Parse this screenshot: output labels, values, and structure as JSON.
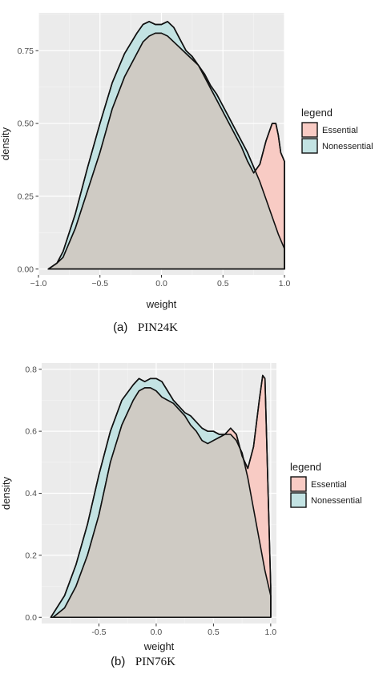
{
  "colors": {
    "panel_bg": "#ebebeb",
    "grid_major": "#ffffff",
    "grid_minor": "#f5f5f5",
    "essential_fill": "#f8cbc4",
    "nonessential_fill": "#c3e3e3",
    "overlap_fill": "#cfcbc4",
    "outline": "#111111"
  },
  "chart_data": [
    {
      "type": "area",
      "caption_prefix": "(a)",
      "caption_name": "PIN24K",
      "xlabel": "weight",
      "ylabel": "density",
      "xlim": [
        -1.0,
        1.0
      ],
      "ylim": [
        -0.02,
        0.88
      ],
      "x_ticks": [
        -1.0,
        -0.5,
        0.0,
        0.5,
        1.0
      ],
      "x_tick_labels": [
        "−1.0",
        "−0.5",
        "0.0",
        "0.5",
        "1.0"
      ],
      "y_ticks": [
        0.0,
        0.25,
        0.5,
        0.75
      ],
      "y_tick_labels": [
        "0.00",
        "0.25",
        "0.50",
        "0.75"
      ],
      "grid": true,
      "legend": {
        "title": "legend",
        "position": "right",
        "entries": [
          "Essential",
          "Nonessential"
        ]
      },
      "series": [
        {
          "name": "Essential",
          "x": [
            -0.92,
            -0.85,
            -0.8,
            -0.7,
            -0.6,
            -0.5,
            -0.4,
            -0.3,
            -0.2,
            -0.15,
            -0.1,
            -0.05,
            0.0,
            0.05,
            0.1,
            0.15,
            0.2,
            0.25,
            0.3,
            0.35,
            0.4,
            0.45,
            0.5,
            0.55,
            0.6,
            0.65,
            0.7,
            0.75,
            0.8,
            0.85,
            0.9,
            0.93,
            0.95,
            0.97,
            1.0
          ],
          "y": [
            0.0,
            0.02,
            0.04,
            0.14,
            0.27,
            0.4,
            0.55,
            0.66,
            0.74,
            0.78,
            0.8,
            0.81,
            0.81,
            0.8,
            0.78,
            0.76,
            0.74,
            0.72,
            0.7,
            0.66,
            0.62,
            0.58,
            0.54,
            0.5,
            0.46,
            0.42,
            0.37,
            0.33,
            0.36,
            0.44,
            0.5,
            0.5,
            0.46,
            0.4,
            0.37
          ]
        },
        {
          "name": "Nonessential",
          "x": [
            -0.92,
            -0.85,
            -0.8,
            -0.7,
            -0.6,
            -0.5,
            -0.4,
            -0.3,
            -0.2,
            -0.15,
            -0.1,
            -0.05,
            0.0,
            0.05,
            0.1,
            0.15,
            0.2,
            0.25,
            0.3,
            0.35,
            0.4,
            0.45,
            0.5,
            0.55,
            0.6,
            0.65,
            0.7,
            0.75,
            0.8,
            0.85,
            0.9,
            0.95,
            1.0
          ],
          "y": [
            0.0,
            0.02,
            0.06,
            0.19,
            0.35,
            0.5,
            0.64,
            0.74,
            0.81,
            0.84,
            0.85,
            0.84,
            0.84,
            0.85,
            0.83,
            0.79,
            0.75,
            0.73,
            0.7,
            0.67,
            0.63,
            0.6,
            0.56,
            0.52,
            0.48,
            0.44,
            0.4,
            0.35,
            0.3,
            0.24,
            0.18,
            0.12,
            0.07
          ]
        }
      ]
    },
    {
      "type": "area",
      "caption_prefix": "(b)",
      "caption_name": "PIN76K",
      "xlabel": "weight",
      "ylabel": "density",
      "xlim": [
        -1.0,
        1.05
      ],
      "ylim": [
        -0.02,
        0.82
      ],
      "x_ticks": [
        -0.5,
        0.0,
        0.5,
        1.0
      ],
      "x_tick_labels": [
        "-0.5",
        "0.0",
        "0.5",
        "1.0"
      ],
      "y_ticks": [
        0.0,
        0.2,
        0.4,
        0.6,
        0.8
      ],
      "y_tick_labels": [
        "0.0",
        "0.2",
        "0.4",
        "0.6",
        "0.8"
      ],
      "grid": true,
      "legend": {
        "title": "legend",
        "position": "right",
        "entries": [
          "Essential",
          "Nonessential"
        ]
      },
      "series": [
        {
          "name": "Essential",
          "x": [
            -0.9,
            -0.8,
            -0.7,
            -0.6,
            -0.5,
            -0.4,
            -0.3,
            -0.2,
            -0.15,
            -0.1,
            -0.05,
            0.0,
            0.05,
            0.1,
            0.15,
            0.2,
            0.25,
            0.3,
            0.35,
            0.4,
            0.45,
            0.5,
            0.55,
            0.6,
            0.65,
            0.7,
            0.75,
            0.8,
            0.85,
            0.9,
            0.93,
            0.95,
            0.97,
            1.0
          ],
          "y": [
            0.0,
            0.03,
            0.1,
            0.2,
            0.33,
            0.5,
            0.62,
            0.7,
            0.73,
            0.74,
            0.74,
            0.73,
            0.71,
            0.7,
            0.69,
            0.67,
            0.65,
            0.62,
            0.6,
            0.57,
            0.56,
            0.57,
            0.58,
            0.59,
            0.61,
            0.59,
            0.52,
            0.48,
            0.55,
            0.7,
            0.78,
            0.77,
            0.5,
            0.1
          ]
        },
        {
          "name": "Nonessential",
          "x": [
            -0.92,
            -0.8,
            -0.7,
            -0.6,
            -0.5,
            -0.4,
            -0.3,
            -0.2,
            -0.15,
            -0.1,
            -0.05,
            0.0,
            0.05,
            0.1,
            0.15,
            0.2,
            0.25,
            0.3,
            0.35,
            0.4,
            0.45,
            0.5,
            0.55,
            0.6,
            0.65,
            0.7,
            0.75,
            0.8,
            0.85,
            0.9,
            0.95,
            1.0
          ],
          "y": [
            0.0,
            0.07,
            0.17,
            0.3,
            0.46,
            0.6,
            0.7,
            0.75,
            0.77,
            0.76,
            0.77,
            0.77,
            0.76,
            0.73,
            0.7,
            0.68,
            0.66,
            0.65,
            0.63,
            0.61,
            0.6,
            0.6,
            0.59,
            0.59,
            0.59,
            0.57,
            0.53,
            0.45,
            0.35,
            0.25,
            0.15,
            0.07
          ]
        }
      ]
    }
  ]
}
